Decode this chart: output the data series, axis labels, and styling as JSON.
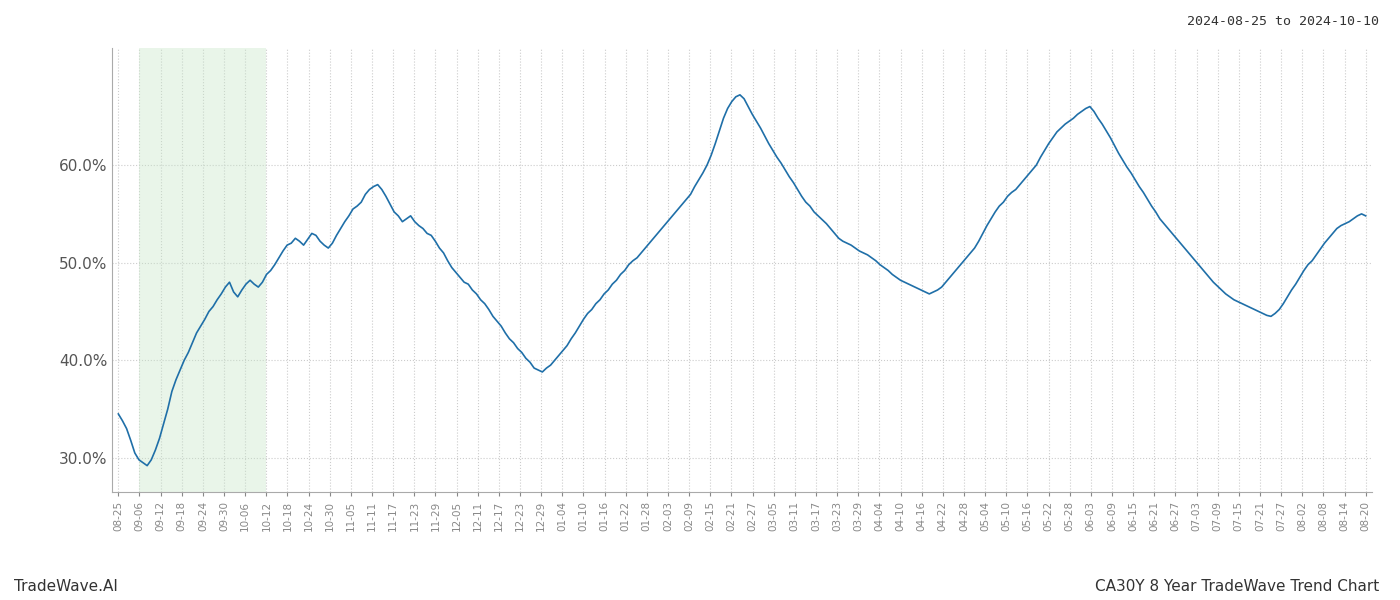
{
  "title_top_right": "2024-08-25 to 2024-10-10",
  "footer_left": "TradeWave.AI",
  "footer_right": "CA30Y 8 Year TradeWave Trend Chart",
  "line_color": "#1f6fa8",
  "line_width": 1.2,
  "bg_color": "#ffffff",
  "grid_color": "#cccccc",
  "grid_linestyle": "dotted",
  "shaded_region_color": "#c8e6c9",
  "shaded_region_alpha": 0.4,
  "ylim": [
    0.265,
    0.72
  ],
  "yticks": [
    0.3,
    0.4,
    0.5,
    0.6
  ],
  "x_labels": [
    "08-25",
    "09-06",
    "09-12",
    "09-18",
    "09-24",
    "09-30",
    "10-06",
    "10-12",
    "10-18",
    "10-24",
    "10-30",
    "11-05",
    "11-11",
    "11-17",
    "11-23",
    "11-29",
    "12-05",
    "12-11",
    "12-17",
    "12-23",
    "12-29",
    "01-04",
    "01-10",
    "01-16",
    "01-22",
    "01-28",
    "02-03",
    "02-09",
    "02-15",
    "02-21",
    "02-27",
    "03-05",
    "03-11",
    "03-17",
    "03-23",
    "03-29",
    "04-04",
    "04-10",
    "04-16",
    "04-22",
    "04-28",
    "05-04",
    "05-10",
    "05-16",
    "05-22",
    "05-28",
    "06-03",
    "06-09",
    "06-15",
    "06-21",
    "06-27",
    "07-03",
    "07-09",
    "07-15",
    "07-21",
    "07-27",
    "08-02",
    "08-08",
    "08-14",
    "08-20"
  ],
  "shaded_start_label": "09-06",
  "shaded_end_label": "10-12",
  "y_values": [
    0.345,
    0.338,
    0.33,
    0.318,
    0.305,
    0.298,
    0.295,
    0.292,
    0.298,
    0.308,
    0.32,
    0.335,
    0.35,
    0.368,
    0.38,
    0.39,
    0.4,
    0.408,
    0.418,
    0.428,
    0.435,
    0.442,
    0.45,
    0.455,
    0.462,
    0.468,
    0.475,
    0.48,
    0.47,
    0.465,
    0.472,
    0.478,
    0.482,
    0.478,
    0.475,
    0.48,
    0.488,
    0.492,
    0.498,
    0.505,
    0.512,
    0.518,
    0.52,
    0.525,
    0.522,
    0.518,
    0.524,
    0.53,
    0.528,
    0.522,
    0.518,
    0.515,
    0.52,
    0.528,
    0.535,
    0.542,
    0.548,
    0.555,
    0.558,
    0.562,
    0.57,
    0.575,
    0.578,
    0.58,
    0.575,
    0.568,
    0.56,
    0.552,
    0.548,
    0.542,
    0.545,
    0.548,
    0.542,
    0.538,
    0.535,
    0.53,
    0.528,
    0.522,
    0.515,
    0.51,
    0.502,
    0.495,
    0.49,
    0.485,
    0.48,
    0.478,
    0.472,
    0.468,
    0.462,
    0.458,
    0.452,
    0.445,
    0.44,
    0.435,
    0.428,
    0.422,
    0.418,
    0.412,
    0.408,
    0.402,
    0.398,
    0.392,
    0.39,
    0.388,
    0.392,
    0.395,
    0.4,
    0.405,
    0.41,
    0.415,
    0.422,
    0.428,
    0.435,
    0.442,
    0.448,
    0.452,
    0.458,
    0.462,
    0.468,
    0.472,
    0.478,
    0.482,
    0.488,
    0.492,
    0.498,
    0.502,
    0.505,
    0.51,
    0.515,
    0.52,
    0.525,
    0.53,
    0.535,
    0.54,
    0.545,
    0.55,
    0.555,
    0.56,
    0.565,
    0.57,
    0.578,
    0.585,
    0.592,
    0.6,
    0.61,
    0.622,
    0.635,
    0.648,
    0.658,
    0.665,
    0.67,
    0.672,
    0.668,
    0.66,
    0.652,
    0.645,
    0.638,
    0.63,
    0.622,
    0.615,
    0.608,
    0.602,
    0.595,
    0.588,
    0.582,
    0.575,
    0.568,
    0.562,
    0.558,
    0.552,
    0.548,
    0.544,
    0.54,
    0.535,
    0.53,
    0.525,
    0.522,
    0.52,
    0.518,
    0.515,
    0.512,
    0.51,
    0.508,
    0.505,
    0.502,
    0.498,
    0.495,
    0.492,
    0.488,
    0.485,
    0.482,
    0.48,
    0.478,
    0.476,
    0.474,
    0.472,
    0.47,
    0.468,
    0.47,
    0.472,
    0.475,
    0.48,
    0.485,
    0.49,
    0.495,
    0.5,
    0.505,
    0.51,
    0.515,
    0.522,
    0.53,
    0.538,
    0.545,
    0.552,
    0.558,
    0.562,
    0.568,
    0.572,
    0.575,
    0.58,
    0.585,
    0.59,
    0.595,
    0.6,
    0.608,
    0.615,
    0.622,
    0.628,
    0.634,
    0.638,
    0.642,
    0.645,
    0.648,
    0.652,
    0.655,
    0.658,
    0.66,
    0.655,
    0.648,
    0.642,
    0.635,
    0.628,
    0.62,
    0.612,
    0.605,
    0.598,
    0.592,
    0.585,
    0.578,
    0.572,
    0.565,
    0.558,
    0.552,
    0.545,
    0.54,
    0.535,
    0.53,
    0.525,
    0.52,
    0.515,
    0.51,
    0.505,
    0.5,
    0.495,
    0.49,
    0.485,
    0.48,
    0.476,
    0.472,
    0.468,
    0.465,
    0.462,
    0.46,
    0.458,
    0.456,
    0.454,
    0.452,
    0.45,
    0.448,
    0.446,
    0.445,
    0.448,
    0.452,
    0.458,
    0.465,
    0.472,
    0.478,
    0.485,
    0.492,
    0.498,
    0.502,
    0.508,
    0.514,
    0.52,
    0.525,
    0.53,
    0.535,
    0.538,
    0.54,
    0.542,
    0.545,
    0.548,
    0.55,
    0.548
  ]
}
